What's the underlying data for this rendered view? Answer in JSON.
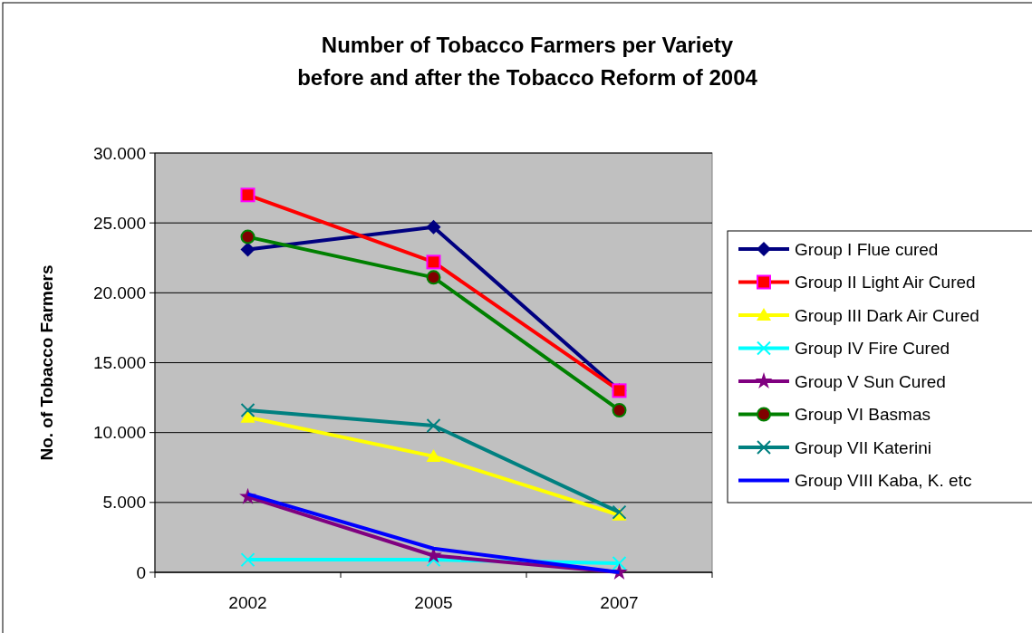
{
  "chart_data": {
    "type": "line",
    "title": "Number of Tobacco Farmers per Variety\nbefore and after the Tobacco Reform of 2004",
    "ylabel": "No. of Tobacco Farmers",
    "categories": [
      "2002",
      "2005",
      "2007"
    ],
    "ylim": [
      0,
      30000
    ],
    "yticks": [
      0,
      {
        "value": 5000,
        "label": "5.000"
      },
      {
        "value": 10000,
        "label": "10.000"
      },
      {
        "value": 15000,
        "label": "15.000"
      },
      {
        "value": 20000,
        "label": "20.000"
      },
      {
        "value": 25000,
        "label": "25.000"
      },
      {
        "value": 30000,
        "label": "30.000"
      }
    ],
    "grid": "y",
    "legend": "right",
    "series": [
      {
        "name": "Group I Flue cured",
        "color": "#000080",
        "marker": "diamond",
        "values": [
          23100,
          24700,
          13000
        ]
      },
      {
        "name": "Group II Light Air Cured",
        "color": "#ff0000",
        "marker": "square",
        "values": [
          27000,
          22200,
          13000
        ]
      },
      {
        "name": "Group III Dark Air Cured",
        "color": "#ffff00",
        "marker": "triangle",
        "values": [
          11100,
          8300,
          4100
        ]
      },
      {
        "name": "Group IV Fire Cured",
        "color": "#00ffff",
        "marker": "cross",
        "values": [
          900,
          900,
          650
        ]
      },
      {
        "name": "Group V Sun Cured",
        "color": "#800080",
        "marker": "star",
        "values": [
          5400,
          1200,
          0
        ]
      },
      {
        "name": "Group VI Basmas",
        "color": "#008000",
        "marker": "circle",
        "values": [
          24000,
          21100,
          11600
        ]
      },
      {
        "name": "Group VII Katerini",
        "color": "#008080",
        "marker": "cross",
        "values": [
          11600,
          10500,
          4300
        ]
      },
      {
        "name": "Group VIII Kaba, K. etc",
        "color": "#0000ff",
        "marker": "none",
        "values": [
          5600,
          1700,
          0
        ]
      }
    ]
  }
}
